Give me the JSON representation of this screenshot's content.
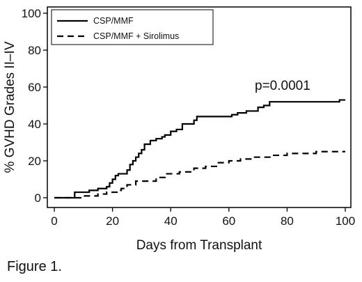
{
  "chart_data": {
    "type": "line",
    "xlabel": "Days from Transplant",
    "ylabel": "% GVHD Grades II–IV",
    "xlim": [
      0,
      100
    ],
    "ylim": [
      0,
      100
    ],
    "xticks": [
      "0",
      "20",
      "40",
      "60",
      "80",
      "100"
    ],
    "yticks": [
      "0",
      "20",
      "40",
      "60",
      "80",
      "100"
    ],
    "grid": false,
    "legend_position": "top-left",
    "annotation": "p=0.0001",
    "series": [
      {
        "name": "CSP/MMF",
        "style": "solid",
        "x": [
          0,
          7,
          7,
          9,
          9,
          12,
          12,
          15,
          15,
          18,
          18,
          19,
          19,
          20,
          20,
          21,
          21,
          22,
          22,
          25,
          25,
          26,
          26,
          27,
          27,
          28,
          28,
          29,
          29,
          30,
          30,
          31,
          31,
          33,
          33,
          35,
          35,
          37,
          37,
          38,
          38,
          40,
          40,
          42,
          42,
          44,
          44,
          48,
          48,
          49,
          49,
          61,
          61,
          63,
          63,
          66,
          66,
          70,
          70,
          72,
          72,
          74,
          74,
          98,
          98,
          100
        ],
        "y": [
          0,
          0,
          3,
          3,
          3,
          3,
          4,
          4,
          5,
          5,
          6,
          6,
          8,
          8,
          10,
          10,
          12,
          12,
          13,
          13,
          15,
          15,
          18,
          18,
          20,
          20,
          22,
          22,
          24,
          24,
          26,
          26,
          29,
          29,
          31,
          31,
          32,
          32,
          33,
          33,
          34,
          34,
          36,
          36,
          37,
          37,
          40,
          40,
          42,
          42,
          44,
          44,
          45,
          45,
          46,
          46,
          47,
          47,
          49,
          49,
          50,
          50,
          52,
          52,
          53,
          53
        ]
      },
      {
        "name": "CSP/MMF + Sirolimus",
        "style": "dashed",
        "x": [
          0,
          10,
          10,
          15,
          15,
          18,
          18,
          22,
          22,
          23,
          23,
          25,
          25,
          28,
          28,
          35,
          35,
          38,
          38,
          43,
          43,
          48,
          48,
          52,
          52,
          56,
          56,
          60,
          60,
          64,
          64,
          68,
          68,
          75,
          75,
          80,
          80,
          90,
          90,
          100
        ],
        "y": [
          0,
          0,
          1,
          1,
          2,
          2,
          3,
          3,
          4,
          4,
          5,
          5,
          7,
          7,
          9,
          9,
          11,
          11,
          13,
          13,
          14,
          14,
          16,
          16,
          17,
          17,
          19,
          19,
          20,
          20,
          21,
          21,
          22,
          22,
          23,
          23,
          24,
          24,
          25,
          25
        ]
      }
    ]
  },
  "caption": "Figure 1."
}
